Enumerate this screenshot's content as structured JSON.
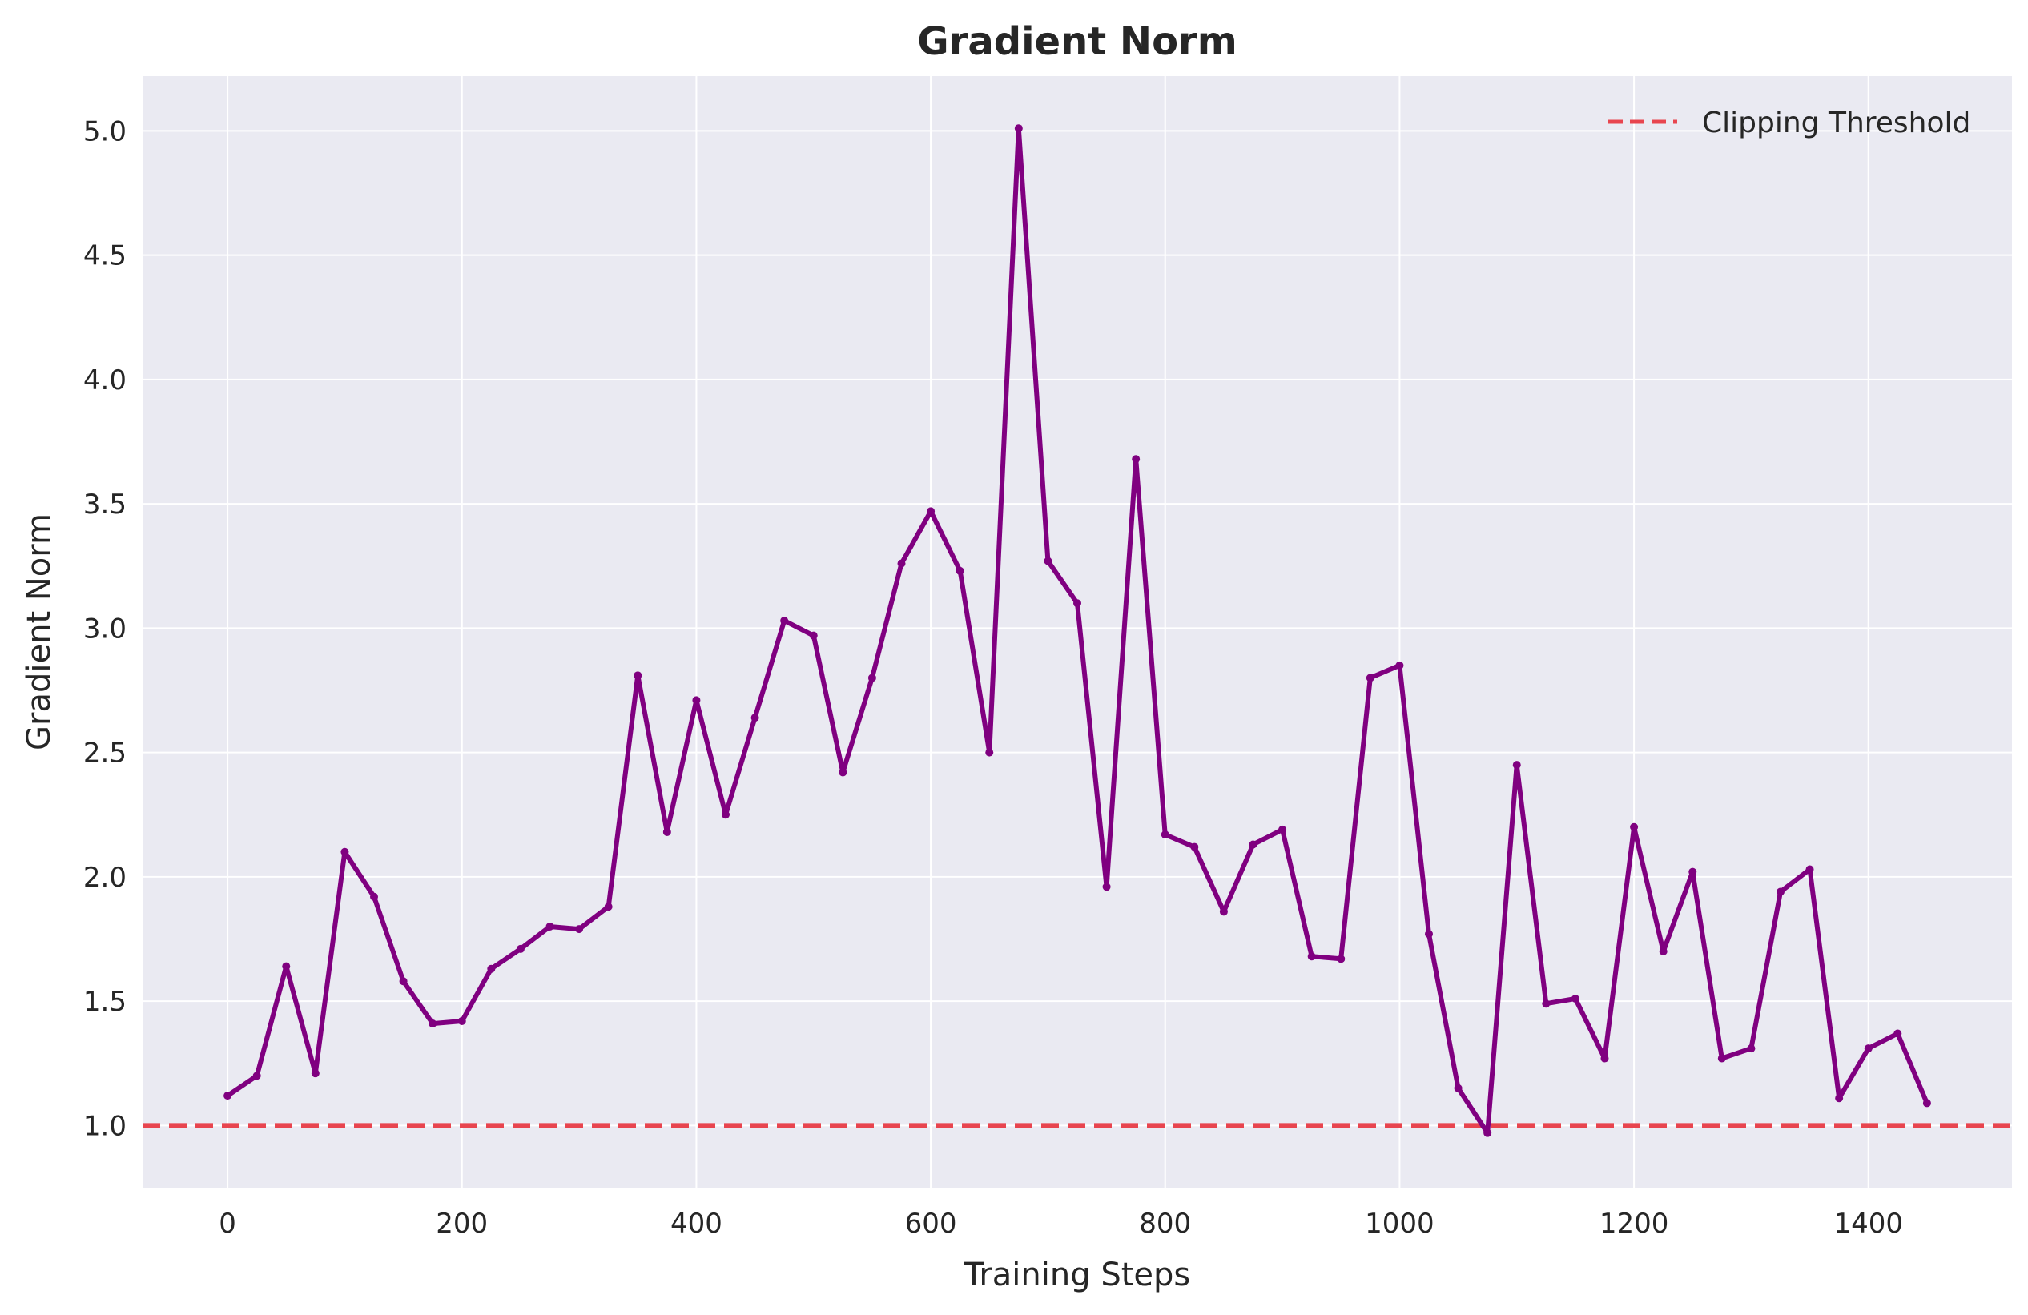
{
  "chart_data": {
    "type": "line",
    "title": "Gradient Norm",
    "xlabel": "Training Steps",
    "ylabel": "Gradient Norm",
    "xlim": [
      -72.5,
      1522.5
    ],
    "ylim": [
      0.75,
      5.22
    ],
    "x_ticks": [
      0,
      200,
      400,
      600,
      800,
      1000,
      1200,
      1400
    ],
    "x_tick_labels": [
      "0",
      "200",
      "400",
      "600",
      "800",
      "1000",
      "1200",
      "1400"
    ],
    "y_ticks": [
      1.0,
      1.5,
      2.0,
      2.5,
      3.0,
      3.5,
      4.0,
      4.5,
      5.0
    ],
    "y_tick_labels": [
      "1.0",
      "1.5",
      "2.0",
      "2.5",
      "3.0",
      "3.5",
      "4.0",
      "4.5",
      "5.0"
    ],
    "grid": true,
    "legend_position": "top-right",
    "series": [
      {
        "color": "#800080",
        "x": [
          0,
          25,
          50,
          75,
          100,
          125,
          150,
          175,
          200,
          225,
          250,
          275,
          300,
          325,
          350,
          375,
          400,
          425,
          450,
          475,
          500,
          525,
          550,
          575,
          600,
          625,
          650,
          675,
          700,
          725,
          750,
          775,
          800,
          825,
          850,
          875,
          900,
          925,
          950,
          975,
          1000,
          1025,
          1050,
          1075,
          1100,
          1125,
          1150,
          1175,
          1200,
          1225,
          1250,
          1275,
          1300,
          1325,
          1350,
          1375,
          1400,
          1425,
          1450
        ],
        "y": [
          1.12,
          1.2,
          1.64,
          1.21,
          2.1,
          1.92,
          1.58,
          1.41,
          1.42,
          1.63,
          1.71,
          1.8,
          1.79,
          1.88,
          2.81,
          2.18,
          2.71,
          2.25,
          2.64,
          3.03,
          2.97,
          2.42,
          2.8,
          3.26,
          3.47,
          3.23,
          2.5,
          5.01,
          3.27,
          3.1,
          1.96,
          3.68,
          2.17,
          2.12,
          1.86,
          2.13,
          2.19,
          1.68,
          1.67,
          2.8,
          2.85,
          1.77,
          1.15,
          0.97,
          2.45,
          1.49,
          1.51,
          1.27,
          2.2,
          1.7,
          2.02,
          1.27,
          1.31,
          1.94,
          2.03,
          1.11,
          1.31,
          1.37,
          1.09
        ]
      },
      {
        "name": "Clipping Threshold",
        "color": "#e8454f",
        "style": "dashed",
        "y_constant": 1.0
      }
    ]
  }
}
